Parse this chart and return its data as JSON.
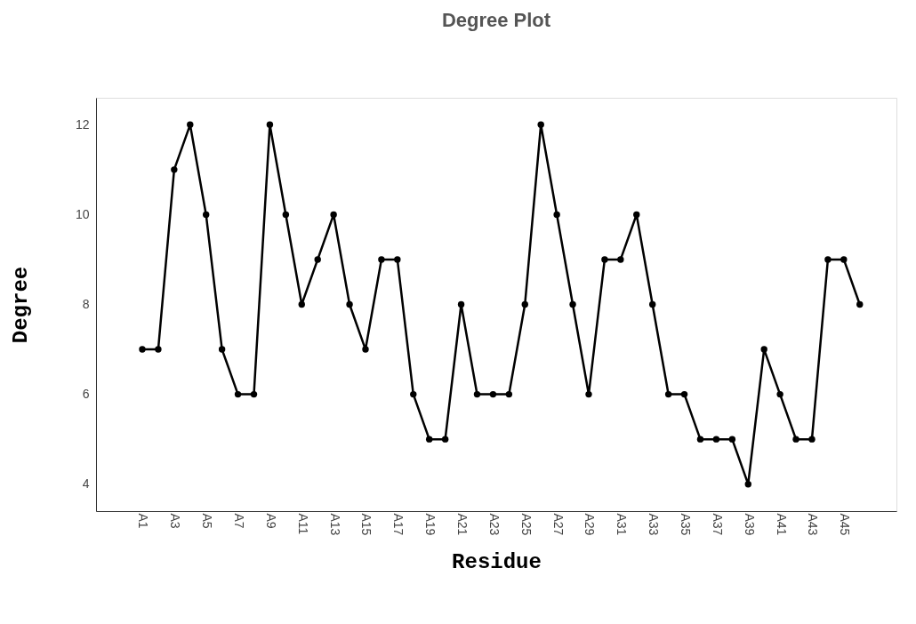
{
  "chart_data": {
    "type": "line",
    "title": "Degree Plot",
    "xlabel": "Residue",
    "ylabel": "Degree",
    "categories": [
      "A1",
      null,
      "A3",
      null,
      "A5",
      null,
      "A7",
      null,
      "A9",
      null,
      "A11",
      null,
      "A13",
      null,
      "A15",
      null,
      "A17",
      null,
      "A19",
      null,
      "A21",
      null,
      "A23",
      null,
      "A25",
      null,
      "A27",
      null,
      "A29",
      null,
      "A31",
      null,
      "A33",
      null,
      "A35",
      null,
      "A37",
      null,
      "A39",
      null,
      "A41",
      null,
      "A43",
      null,
      "A45",
      null
    ],
    "series": [
      {
        "color": "#000000",
        "values": [
          7,
          7,
          11,
          12,
          10,
          7,
          6,
          6,
          12,
          10,
          8,
          9,
          10,
          8,
          7,
          9,
          9,
          6,
          5,
          5,
          8,
          6,
          6,
          6,
          8,
          12,
          10,
          8,
          6,
          9,
          9,
          10,
          8,
          6,
          6,
          5,
          5,
          5,
          4,
          7,
          6,
          5,
          5,
          9,
          9,
          8
        ]
      }
    ],
    "ylim": [
      3.4,
      12.6
    ],
    "yticks": [
      4,
      6,
      8,
      10,
      12
    ],
    "grid": false,
    "marker": "circle",
    "line_style": "solid"
  }
}
